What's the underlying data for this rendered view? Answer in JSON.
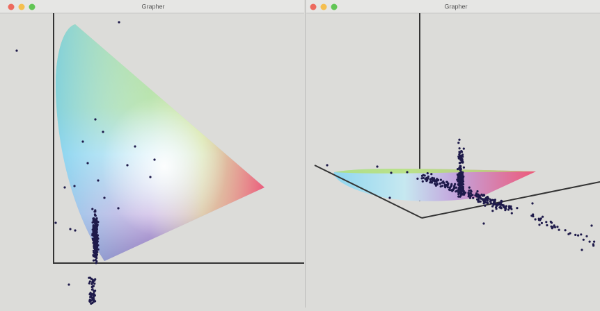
{
  "windows": [
    {
      "title": "Grapher"
    },
    {
      "title": "Grapher"
    }
  ]
}
